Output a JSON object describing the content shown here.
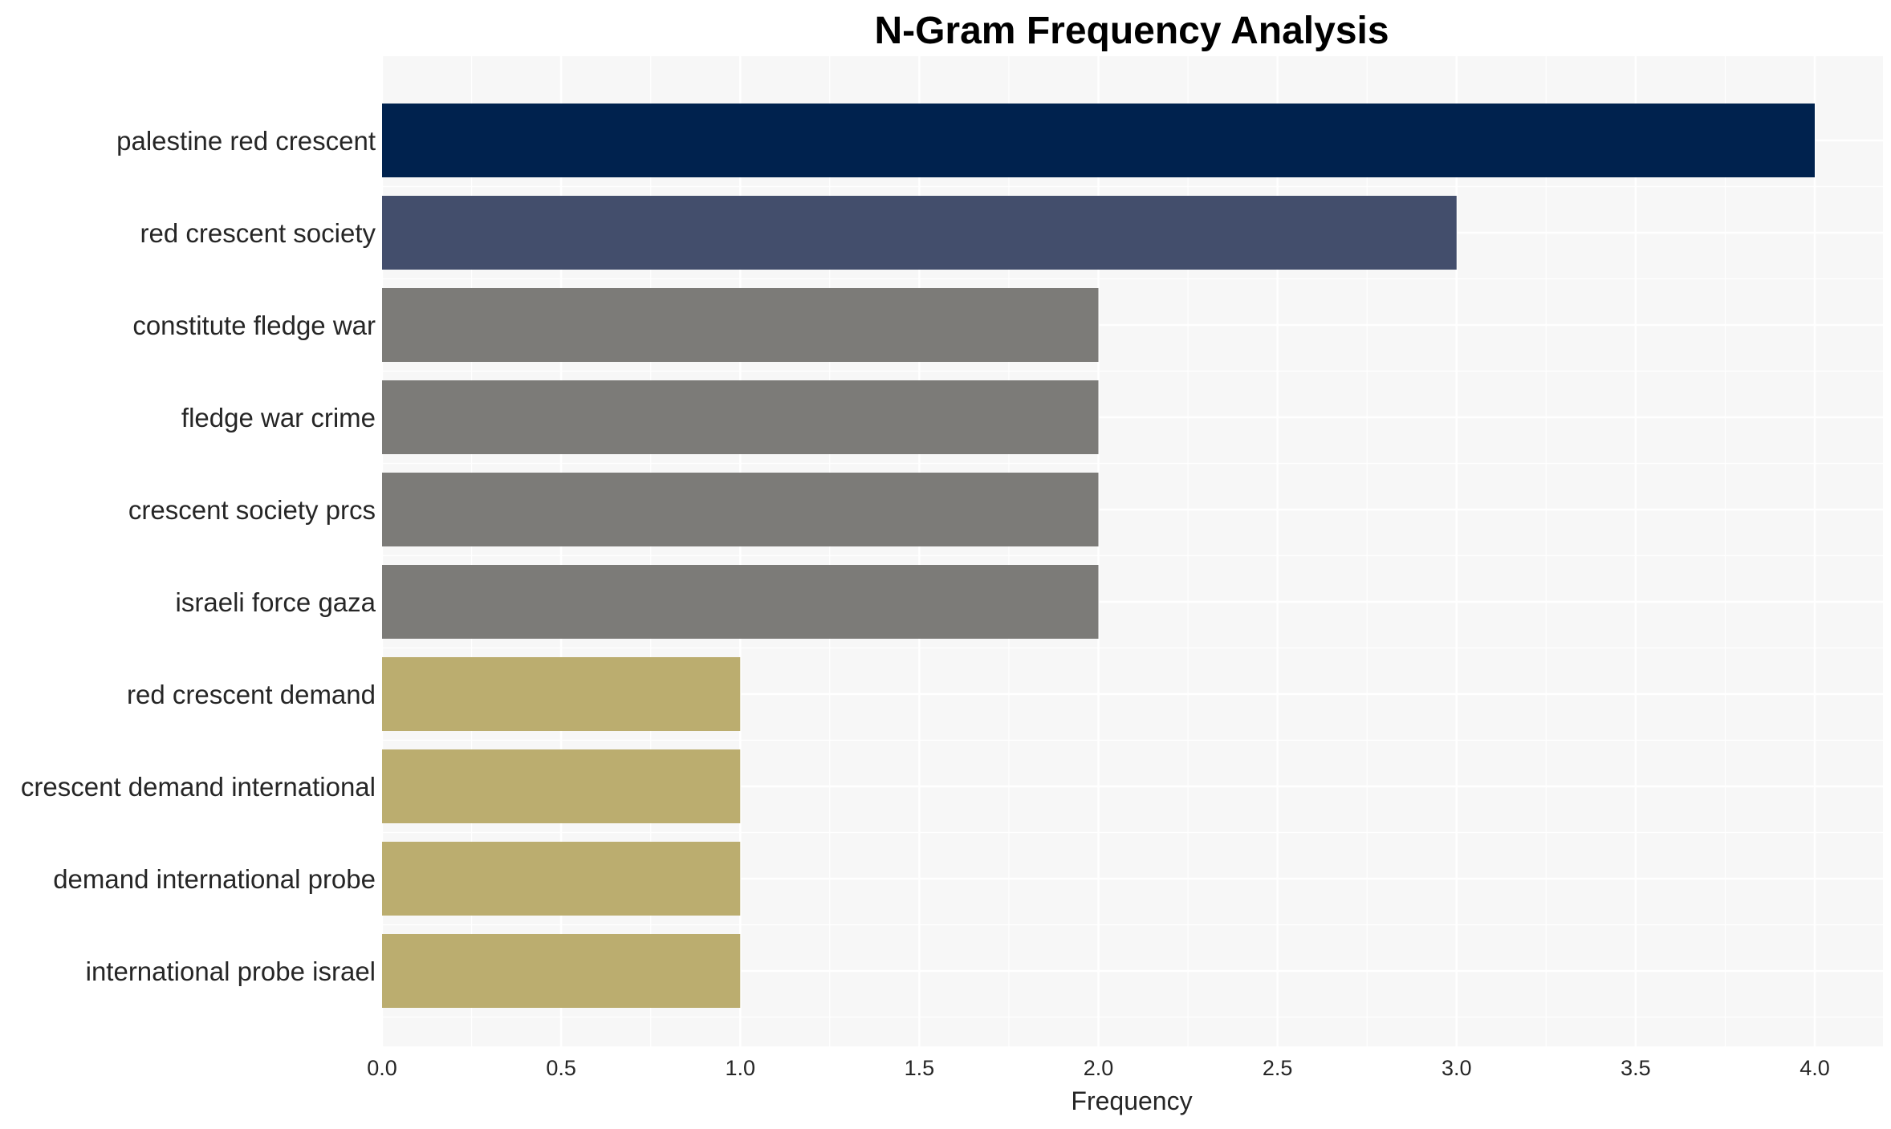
{
  "chart_data": {
    "type": "bar",
    "orientation": "horizontal",
    "title": "N-Gram Frequency Analysis",
    "xlabel": "Frequency",
    "ylabel": "",
    "xlim": [
      0,
      4.2
    ],
    "xticks": [
      "0.0",
      "0.5",
      "1.0",
      "1.5",
      "2.0",
      "2.5",
      "3.0",
      "3.5",
      "4.0"
    ],
    "grid": true,
    "categories": [
      "palestine red crescent",
      "red crescent society",
      "constitute fledge war",
      "fledge war crime",
      "crescent society prcs",
      "israeli force gaza",
      "red crescent demand",
      "crescent demand international",
      "demand international probe",
      "international probe israel"
    ],
    "values": [
      4,
      3,
      2,
      2,
      2,
      2,
      1,
      1,
      1,
      1
    ],
    "colors": [
      "#00224e",
      "#434e6c",
      "#7c7b78",
      "#7c7b78",
      "#7c7b78",
      "#7c7b78",
      "#bbad6f",
      "#bbad6f",
      "#bbad6f",
      "#bbad6f"
    ],
    "plot_background": "#f7f7f7",
    "grid_color": "#ffffff"
  }
}
